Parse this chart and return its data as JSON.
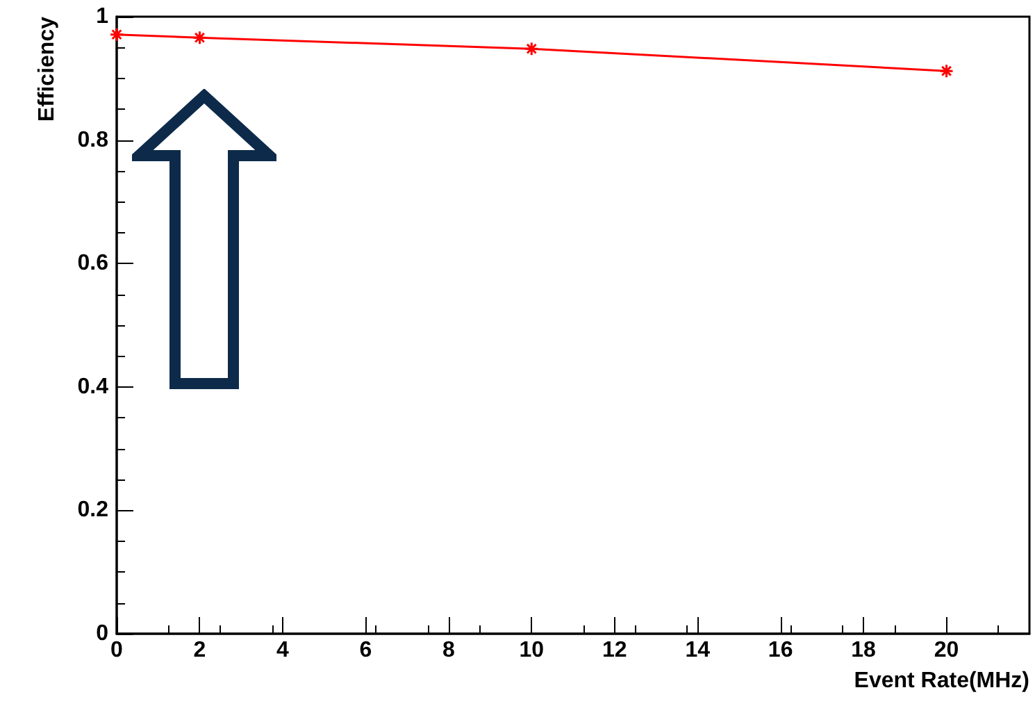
{
  "chart_data": {
    "type": "line",
    "xlabel": "Event Rate(MHz)",
    "ylabel": "Efficiency",
    "x": [
      0,
      2,
      10,
      20
    ],
    "series": [
      {
        "color": "#ff0000",
        "values": [
          0.971,
          0.966,
          0.948,
          0.912
        ]
      }
    ],
    "xlim": [
      0,
      22
    ],
    "xticks": [
      0,
      2,
      4,
      6,
      8,
      10,
      12,
      14,
      16,
      18,
      20
    ],
    "ylim": [
      0,
      1
    ],
    "yticks": [
      0,
      0.2,
      0.4,
      0.6,
      0.8,
      1
    ],
    "marker": "cross",
    "line_style": "solid",
    "grid": false
  }
}
